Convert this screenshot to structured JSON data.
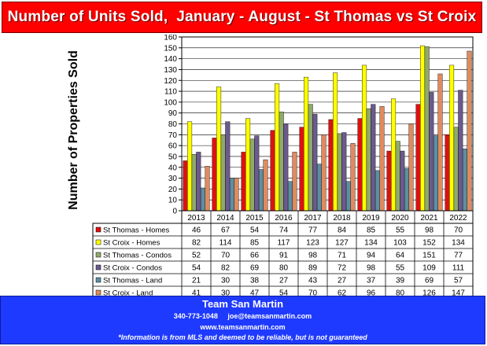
{
  "header": {
    "title": "Number of Units Sold,  January - August - St Thomas vs St Croix"
  },
  "chart_data": {
    "type": "bar",
    "title": "Number of Units Sold,  January - August - St Thomas vs St Croix",
    "ylabel": "Number of Properties Sold",
    "xlabel": "",
    "ylim": [
      0,
      160
    ],
    "ytick_step": 10,
    "grid": true,
    "legend": "table-below",
    "categories": [
      "2013",
      "2014",
      "2015",
      "2016",
      "2017",
      "2018",
      "2019",
      "2020",
      "2021",
      "2022"
    ],
    "series": [
      {
        "name": "St Thomas - Homes",
        "color": "#dd1111",
        "values": [
          46,
          67,
          54,
          74,
          77,
          84,
          85,
          55,
          98,
          70
        ]
      },
      {
        "name": "St Croix - Homes",
        "color": "#ffff00",
        "values": [
          82,
          114,
          85,
          117,
          123,
          127,
          134,
          103,
          152,
          134
        ]
      },
      {
        "name": "St Thomas - Condos",
        "color": "#8faa6a",
        "values": [
          52,
          70,
          66,
          91,
          98,
          71,
          94,
          64,
          151,
          77
        ]
      },
      {
        "name": "St Croix - Condos",
        "color": "#6c5a8e",
        "values": [
          54,
          82,
          69,
          80,
          89,
          72,
          98,
          55,
          109,
          111
        ]
      },
      {
        "name": "St Thomas - Land",
        "color": "#5e8fa0",
        "values": [
          21,
          30,
          38,
          27,
          43,
          27,
          37,
          39,
          69,
          57
        ]
      },
      {
        "name": "St Croix - Land",
        "color": "#e08a5e",
        "values": [
          41,
          30,
          47,
          54,
          70,
          62,
          96,
          80,
          126,
          147
        ]
      }
    ]
  },
  "footer": {
    "brand": "Team San Martin",
    "phone": "340-773-1048",
    "email": "joe@teamsanmartin.com",
    "website": "www.teamsanmartin.com",
    "disclaimer": "*Information is from MLS and deemed to be reliable, but is not guaranteed"
  }
}
